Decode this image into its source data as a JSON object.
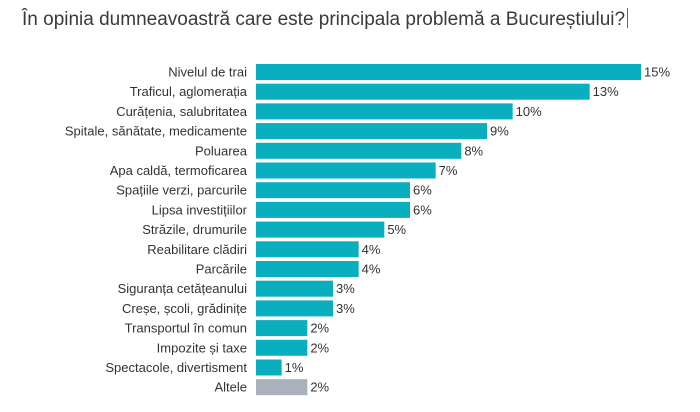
{
  "chart_data": {
    "type": "bar",
    "orientation": "horizontal",
    "title": "În opinia dumneavoastră care este principala problemă a Bucureștiului?",
    "categories": [
      "Nivelul de trai",
      "Traficul, aglomerația",
      "Curățenia, salubritatea",
      "Spitale, sănătate, medicamente",
      "Poluarea",
      "Apa caldă, termoficarea",
      "Spațiile verzi, parcurile",
      "Lipsa investițiilor",
      "Străzile, drumurile",
      "Reabilitare clădiri",
      "Parcările",
      "Siguranța cetățeanului",
      "Creșe, școli, grădinițe",
      "Transportul în comun",
      "Impozite și taxe",
      "Spectacole, divertisment",
      "Altele"
    ],
    "values": [
      15,
      13,
      10,
      9,
      8,
      7,
      6,
      6,
      5,
      4,
      4,
      3,
      3,
      2,
      2,
      1,
      2
    ],
    "value_labels": [
      "15%",
      "13%",
      "10%",
      "9%",
      "8%",
      "7%",
      "6%",
      "6%",
      "5%",
      "4%",
      "4%",
      "3%",
      "3%",
      "2%",
      "2%",
      "1%",
      "2%"
    ],
    "unit": "%",
    "xlim": [
      0,
      15
    ],
    "colors": {
      "bar": "#0aafbf",
      "other": "#a9b1bb"
    },
    "grid": false,
    "legend": "none"
  }
}
